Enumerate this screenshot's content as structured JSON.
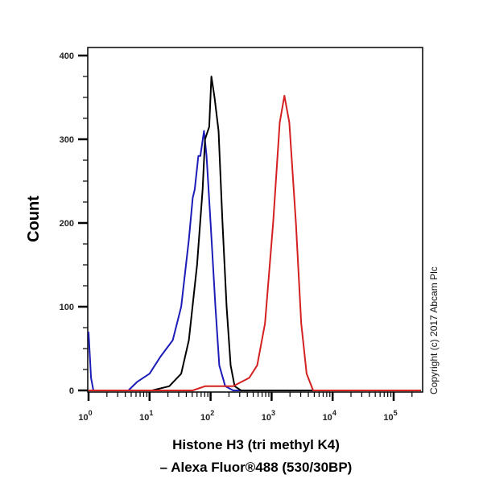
{
  "chart_data": {
    "type": "line",
    "title": "",
    "xlabel": [
      "Histone H3 (tri methyl K4)",
      "– Alexa Fluor®488 (530/30BP)"
    ],
    "ylabel": "Count",
    "x_scale": "log",
    "xlim": [
      1,
      280000
    ],
    "ylim": [
      0,
      410
    ],
    "x_ticks": [
      {
        "base": "10",
        "exp": "0"
      },
      {
        "base": "10",
        "exp": "1"
      },
      {
        "base": "10",
        "exp": "2"
      },
      {
        "base": "10",
        "exp": "3"
      },
      {
        "base": "10",
        "exp": "4"
      },
      {
        "base": "10",
        "exp": "5"
      }
    ],
    "y_ticks": [
      "0",
      "100",
      "200",
      "300",
      "400"
    ],
    "grid": false,
    "legend": "none",
    "annotation": "Copyright (c) 2017 Abcam Plc",
    "series": [
      {
        "color": "#1c1cb8",
        "x": [
          1,
          1.1,
          1.2,
          4.5,
          6.2,
          10,
          15,
          24,
          33,
          44,
          51,
          55,
          63,
          68,
          78,
          86,
          100,
          120,
          139,
          174,
          234,
          280000
        ],
        "y": [
          70,
          15,
          0,
          0,
          10,
          20,
          40,
          60,
          100,
          180,
          230,
          240,
          280,
          280,
          310,
          280,
          200,
          100,
          30,
          5,
          0,
          0
        ]
      },
      {
        "color": "#000000",
        "x": [
          1,
          11,
          21,
          33,
          44,
          60,
          74,
          81,
          95,
          103,
          116,
          135,
          157,
          183,
          213,
          248,
          316,
          280000
        ],
        "y": [
          0,
          0,
          5,
          20,
          60,
          150,
          240,
          300,
          315,
          375,
          350,
          310,
          200,
          100,
          30,
          5,
          0,
          0
        ]
      },
      {
        "color": "#d42020",
        "x": [
          1,
          51,
          81,
          234,
          430,
          580,
          780,
          1060,
          1360,
          1620,
          1950,
          2500,
          3060,
          3750,
          4800,
          280000
        ],
        "y": [
          0,
          0,
          5,
          5,
          15,
          30,
          80,
          200,
          320,
          352,
          320,
          200,
          80,
          20,
          0,
          0
        ]
      }
    ]
  }
}
